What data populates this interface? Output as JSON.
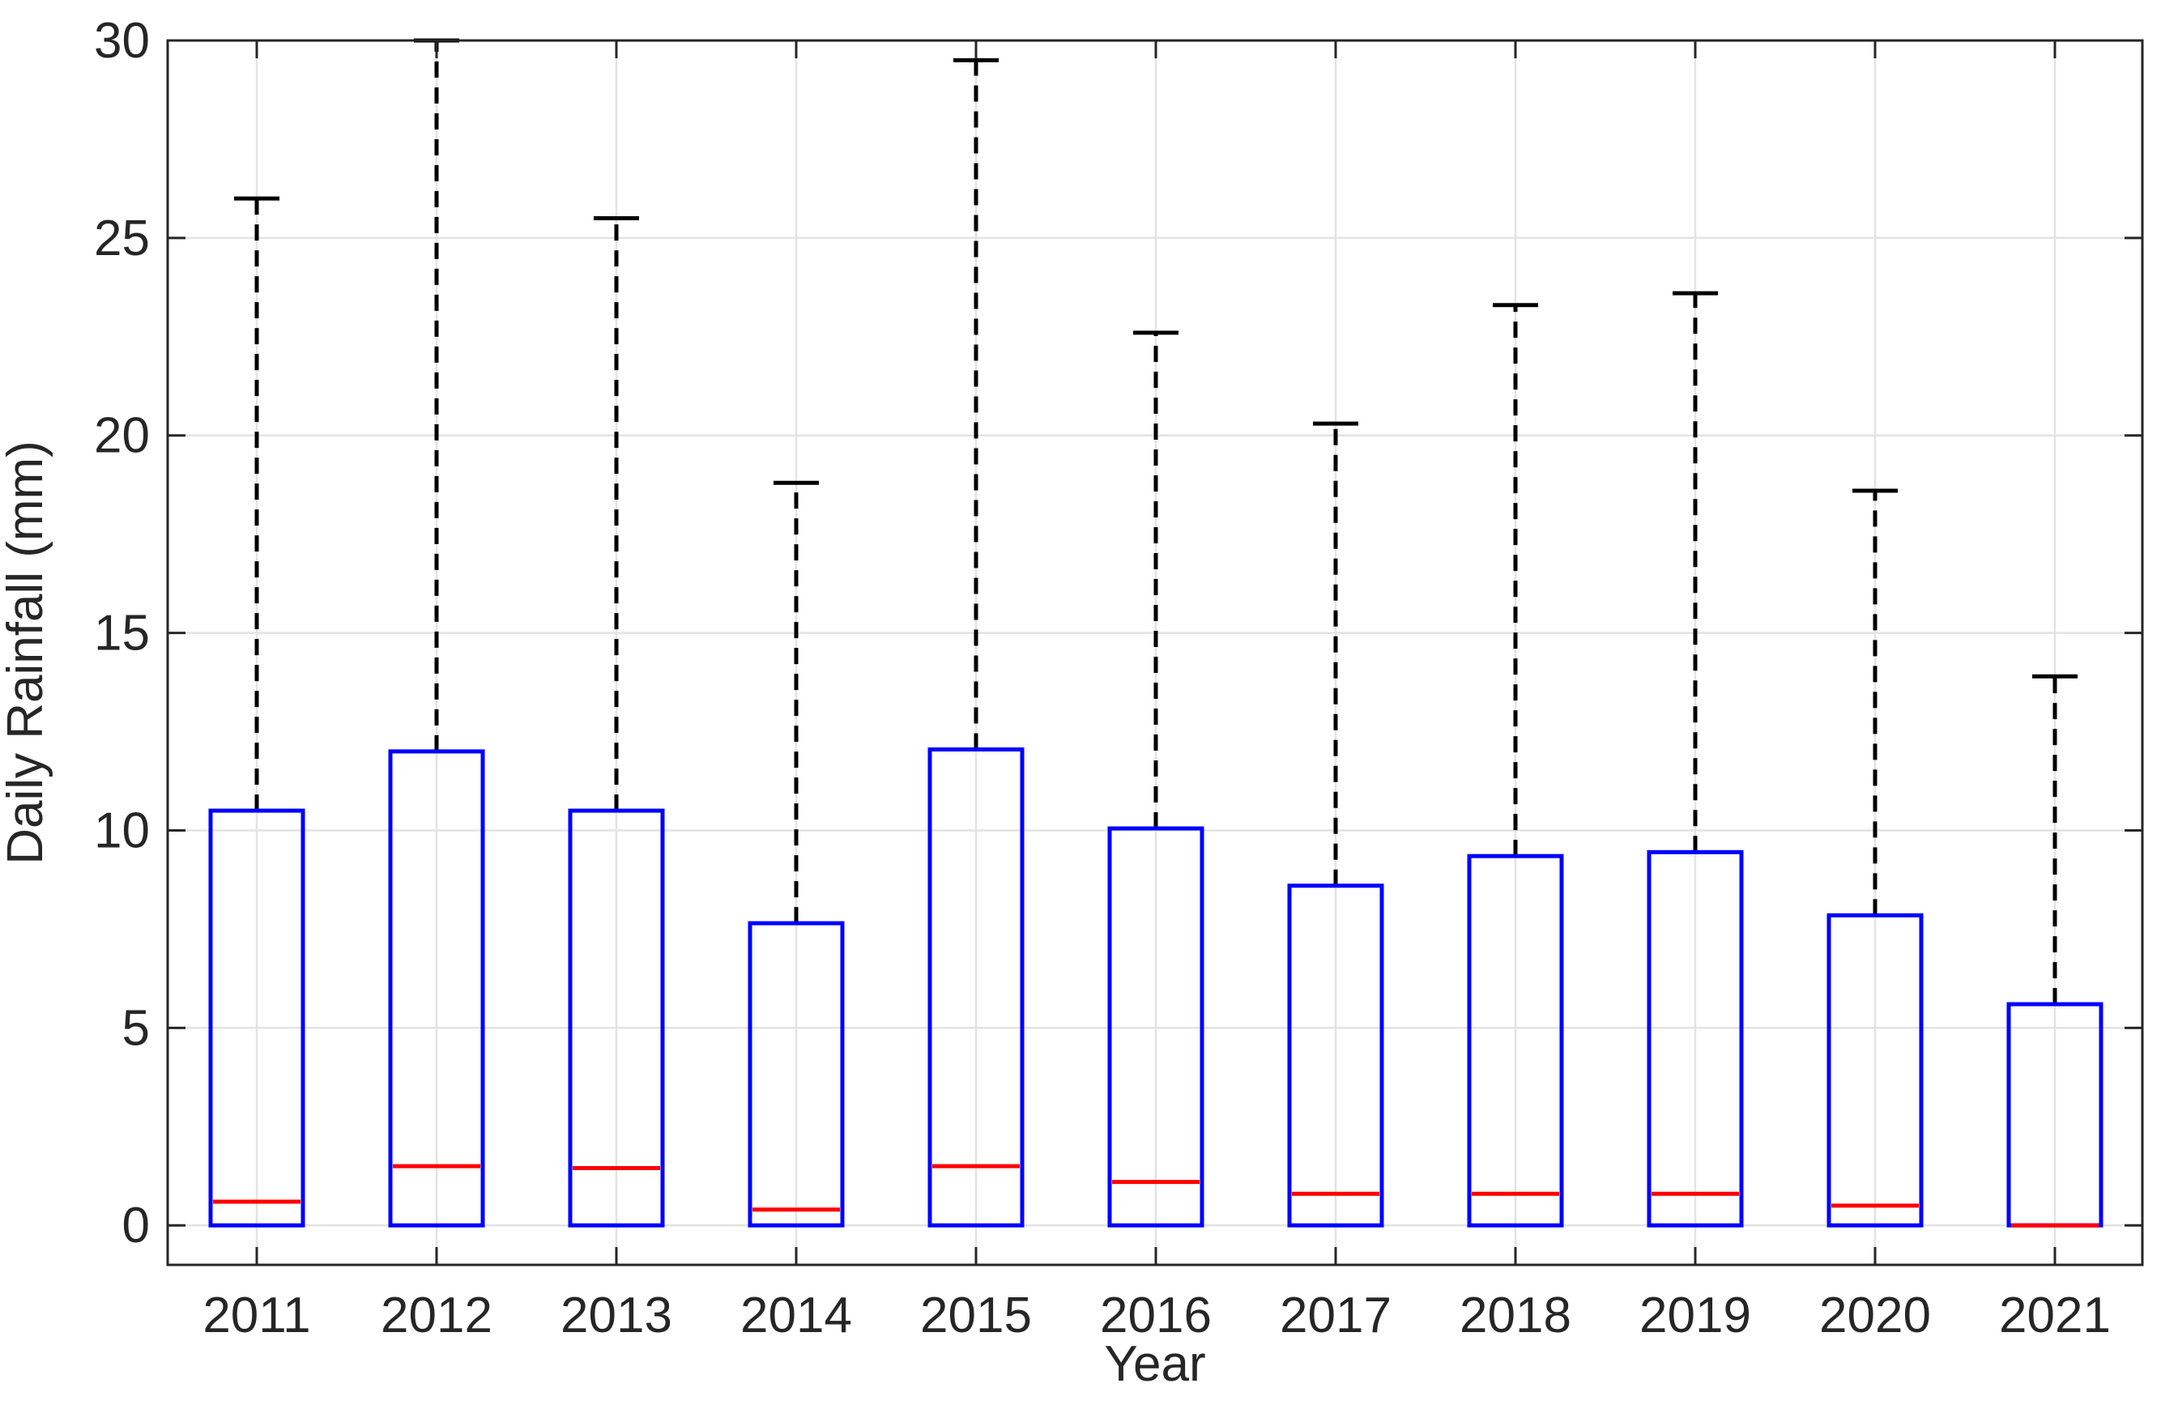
{
  "chart_data": {
    "type": "box",
    "xlabel": "Year",
    "ylabel": "Daily Rainfall (mm)",
    "ylim": [
      -1,
      30
    ],
    "yticks": [
      0,
      5,
      10,
      15,
      20,
      25,
      30
    ],
    "grid": true,
    "categories": [
      "2011",
      "2012",
      "2013",
      "2014",
      "2015",
      "2016",
      "2017",
      "2018",
      "2019",
      "2020",
      "2021"
    ],
    "boxes": [
      {
        "category": "2011",
        "min": 0,
        "q1": 0,
        "median": 0.6,
        "q3": 10.5,
        "max": 26.0
      },
      {
        "category": "2012",
        "min": 0,
        "q1": 0,
        "median": 1.5,
        "q3": 12.0,
        "max": 30.0
      },
      {
        "category": "2013",
        "min": 0,
        "q1": 0,
        "median": 1.45,
        "q3": 10.5,
        "max": 25.5
      },
      {
        "category": "2014",
        "min": 0,
        "q1": 0,
        "median": 0.4,
        "q3": 7.65,
        "max": 18.8
      },
      {
        "category": "2015",
        "min": 0,
        "q1": 0,
        "median": 1.5,
        "q3": 12.05,
        "max": 29.5
      },
      {
        "category": "2016",
        "min": 0,
        "q1": 0,
        "median": 1.1,
        "q3": 10.05,
        "max": 22.6
      },
      {
        "category": "2017",
        "min": 0,
        "q1": 0,
        "median": 0.8,
        "q3": 8.6,
        "max": 20.3
      },
      {
        "category": "2018",
        "min": 0,
        "q1": 0,
        "median": 0.8,
        "q3": 9.35,
        "max": 23.3
      },
      {
        "category": "2019",
        "min": 0,
        "q1": 0,
        "median": 0.8,
        "q3": 9.45,
        "max": 23.6
      },
      {
        "category": "2020",
        "min": 0,
        "q1": 0,
        "median": 0.5,
        "q3": 7.85,
        "max": 18.6
      },
      {
        "category": "2021",
        "min": 0,
        "q1": 0,
        "median": 0.0,
        "q3": 5.6,
        "max": 13.9
      }
    ],
    "colors": {
      "box": "#0000ff",
      "median": "#ff0000",
      "whisker": "#000000",
      "grid": "#e3e3e3",
      "axis": "#262626"
    }
  }
}
